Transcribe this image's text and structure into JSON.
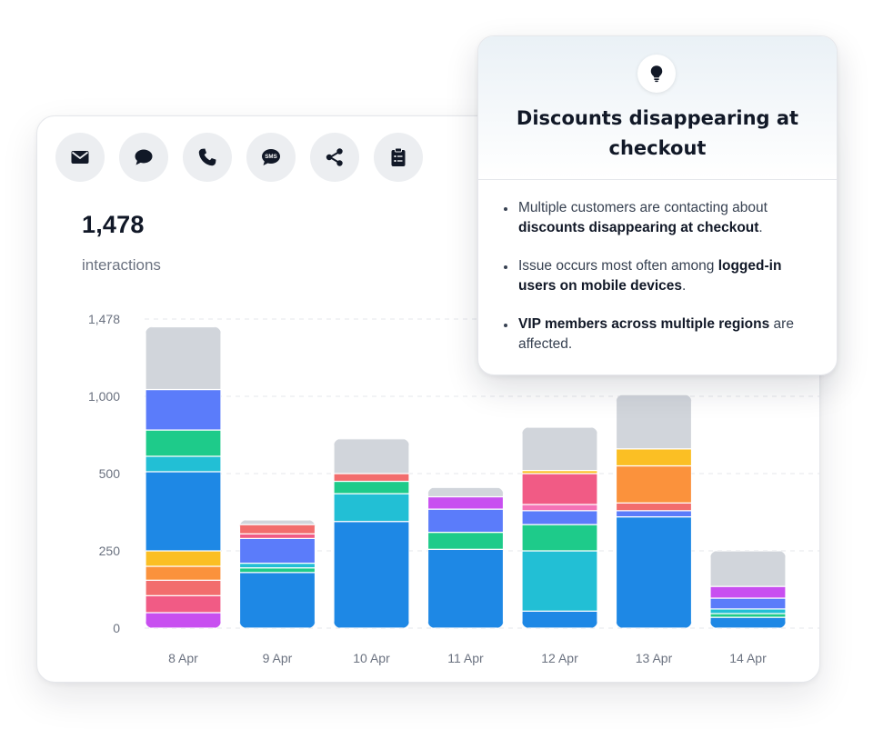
{
  "channels": [
    {
      "key": "email",
      "icon": "envelope-icon"
    },
    {
      "key": "chat",
      "icon": "chat-bubble-icon"
    },
    {
      "key": "phone",
      "icon": "phone-icon"
    },
    {
      "key": "sms",
      "icon": "sms-icon",
      "label": "SMS"
    },
    {
      "key": "social",
      "icon": "share-icon"
    },
    {
      "key": "form",
      "icon": "clipboard-icon"
    }
  ],
  "summary": {
    "total": "1,478",
    "label": "interactions"
  },
  "tooltip": {
    "icon": "lightbulb-icon",
    "title": "Discounts disappearing at checkout",
    "bullets": [
      [
        {
          "t": "Multiple customers are contacting about "
        },
        {
          "t": "discounts disappearing at checkout",
          "b": true
        },
        {
          "t": "."
        }
      ],
      [
        {
          "t": "Issue occurs most often among "
        },
        {
          "t": "logged-in users on mobile devices",
          "b": true
        },
        {
          "t": "."
        }
      ],
      [
        {
          "t": "VIP members across multiple regions",
          "b": true
        },
        {
          "t": " are affected."
        }
      ]
    ]
  },
  "colors": {
    "grid": "#e5e7eb",
    "tick": "#6b7280",
    "segments": [
      "#c84ff0",
      "#f15b85",
      "#f26d6d",
      "#fb923c",
      "#fbbf24",
      "#1e88e5",
      "#22bfd5",
      "#1ecb8a",
      "#5b7cfa",
      "#f472b6",
      "#d1d5db"
    ]
  },
  "chart_data": {
    "type": "bar",
    "stacked": true,
    "categories": [
      "8 Apr",
      "9 Apr",
      "10 Apr",
      "11 Apr",
      "12 Apr",
      "13 Apr",
      "14 Apr"
    ],
    "y_ticks": [
      {
        "value": 0,
        "label": "0"
      },
      {
        "value": 250,
        "label": "250"
      },
      {
        "value": 500,
        "label": "500"
      },
      {
        "value": 1000,
        "label": "1,000"
      },
      {
        "value": 1478,
        "label": "1,478"
      }
    ],
    "y_scale_points": [
      [
        0,
        0
      ],
      [
        250,
        250
      ],
      [
        500,
        500
      ],
      [
        1000,
        750
      ],
      [
        1478,
        1000
      ]
    ],
    "ylim": [
      0,
      1478
    ],
    "grid": true,
    "bars": [
      {
        "category": "8 Apr",
        "segments": [
          {
            "color_index": 0,
            "value": 50
          },
          {
            "color_index": 1,
            "value": 55
          },
          {
            "color_index": 2,
            "value": 50
          },
          {
            "color_index": 3,
            "value": 45
          },
          {
            "color_index": 4,
            "value": 50
          },
          {
            "color_index": 5,
            "value": 262
          },
          {
            "color_index": 6,
            "value": 100
          },
          {
            "color_index": 7,
            "value": 170
          },
          {
            "color_index": 8,
            "value": 260
          },
          {
            "color_index": 10,
            "value": 388
          }
        ]
      },
      {
        "category": "9 Apr",
        "segments": [
          {
            "color_index": 5,
            "value": 180
          },
          {
            "color_index": 7,
            "value": 15
          },
          {
            "color_index": 6,
            "value": 15
          },
          {
            "color_index": 8,
            "value": 80
          },
          {
            "color_index": 1,
            "value": 15
          },
          {
            "color_index": 2,
            "value": 30
          },
          {
            "color_index": 10,
            "value": 15
          }
        ]
      },
      {
        "category": "10 Apr",
        "segments": [
          {
            "color_index": 5,
            "value": 345
          },
          {
            "color_index": 6,
            "value": 90
          },
          {
            "color_index": 7,
            "value": 40
          },
          {
            "color_index": 2,
            "value": 25
          },
          {
            "color_index": 10,
            "value": 225
          }
        ]
      },
      {
        "category": "11 Apr",
        "segments": [
          {
            "color_index": 5,
            "value": 255
          },
          {
            "color_index": 7,
            "value": 55
          },
          {
            "color_index": 8,
            "value": 75
          },
          {
            "color_index": 0,
            "value": 40
          },
          {
            "color_index": 10,
            "value": 30
          }
        ]
      },
      {
        "category": "12 Apr",
        "segments": [
          {
            "color_index": 5,
            "value": 55
          },
          {
            "color_index": 6,
            "value": 195
          },
          {
            "color_index": 7,
            "value": 85
          },
          {
            "color_index": 8,
            "value": 45
          },
          {
            "color_index": 9,
            "value": 20
          },
          {
            "color_index": 1,
            "value": 100
          },
          {
            "color_index": 4,
            "value": 20
          },
          {
            "color_index": 10,
            "value": 280
          }
        ]
      },
      {
        "category": "13 Apr",
        "segments": [
          {
            "color_index": 5,
            "value": 360
          },
          {
            "color_index": 8,
            "value": 20
          },
          {
            "color_index": 2,
            "value": 25
          },
          {
            "color_index": 3,
            "value": 145
          },
          {
            "color_index": 4,
            "value": 110
          },
          {
            "color_index": 10,
            "value": 350
          }
        ]
      },
      {
        "category": "14 Apr",
        "segments": [
          {
            "color_index": 5,
            "value": 35
          },
          {
            "color_index": 7,
            "value": 12
          },
          {
            "color_index": 6,
            "value": 15
          },
          {
            "color_index": 8,
            "value": 35
          },
          {
            "color_index": 0,
            "value": 38
          },
          {
            "color_index": 10,
            "value": 115
          }
        ]
      }
    ]
  }
}
